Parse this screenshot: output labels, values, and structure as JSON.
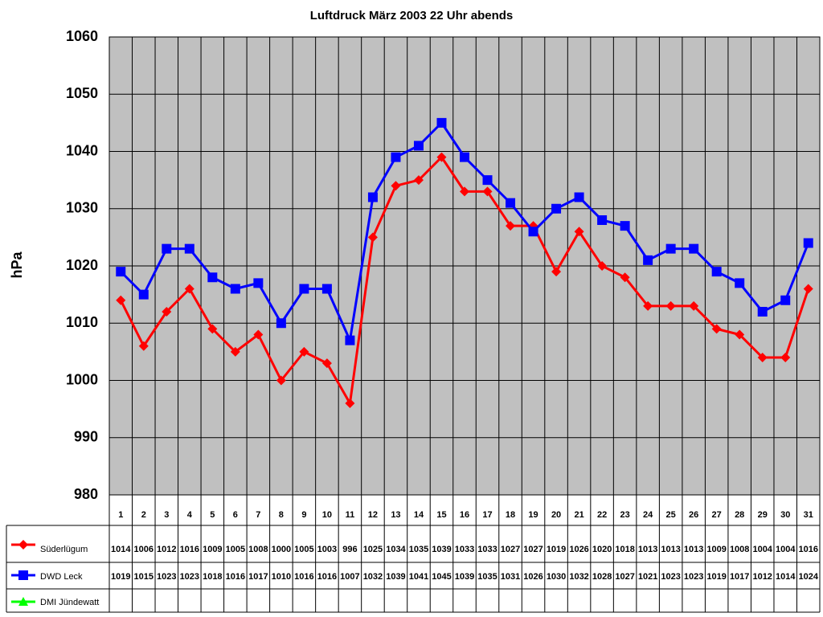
{
  "chart_data": {
    "type": "line",
    "title": "Luftdruck März 2003 22 Uhr abends",
    "y_label": "hPa",
    "categories": [
      "1",
      "2",
      "3",
      "4",
      "5",
      "6",
      "7",
      "8",
      "9",
      "10",
      "11",
      "12",
      "13",
      "14",
      "15",
      "16",
      "17",
      "18",
      "19",
      "20",
      "21",
      "22",
      "23",
      "24",
      "25",
      "26",
      "27",
      "28",
      "29",
      "30",
      "31"
    ],
    "series": [
      {
        "name": "Süderlügum",
        "color": "#ff0000",
        "marker": "diamond",
        "values": [
          1014,
          1006,
          1012,
          1016,
          1009,
          1005,
          1008,
          1000,
          1005,
          1003,
          996,
          1025,
          1034,
          1035,
          1039,
          1033,
          1033,
          1027,
          1027,
          1019,
          1026,
          1020,
          1018,
          1013,
          1013,
          1013,
          1009,
          1008,
          1004,
          1004,
          1016
        ]
      },
      {
        "name": "DWD Leck",
        "color": "#0000ff",
        "marker": "square",
        "values": [
          1019,
          1015,
          1023,
          1023,
          1018,
          1016,
          1017,
          1010,
          1016,
          1016,
          1007,
          1032,
          1039,
          1041,
          1045,
          1039,
          1035,
          1031,
          1026,
          1030,
          1032,
          1028,
          1027,
          1021,
          1023,
          1023,
          1019,
          1017,
          1012,
          1014,
          1024
        ]
      },
      {
        "name": "DMI Jündewatt",
        "color": "#00ff00",
        "marker": "triangle",
        "values": [
          null,
          null,
          null,
          null,
          null,
          null,
          null,
          null,
          null,
          null,
          null,
          null,
          null,
          null,
          null,
          null,
          null,
          null,
          null,
          null,
          null,
          null,
          null,
          null,
          null,
          null,
          null,
          null,
          null,
          null,
          null
        ]
      }
    ],
    "ylim": [
      980,
      1060
    ],
    "yticks": [
      980,
      990,
      1000,
      1010,
      1020,
      1030,
      1040,
      1050,
      1060
    ],
    "grid": true,
    "plot_background": "#c0c0c0"
  }
}
